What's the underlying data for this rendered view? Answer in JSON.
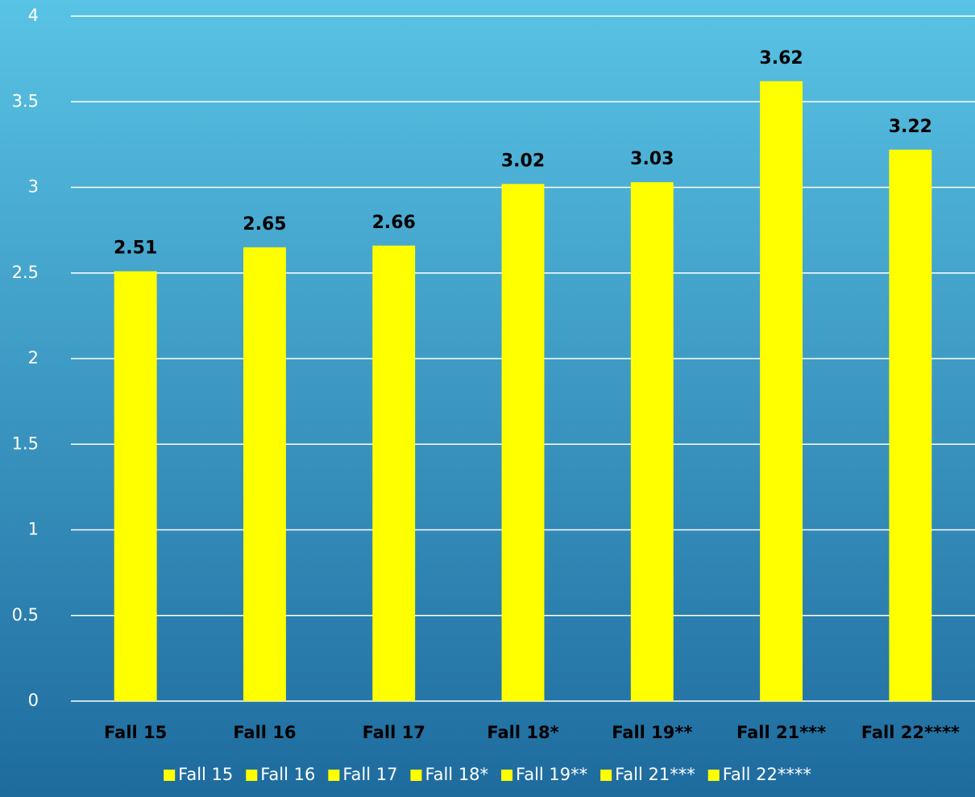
{
  "chart_data": {
    "type": "bar",
    "categories": [
      "Fall 15",
      "Fall 16",
      "Fall 17",
      "Fall 18*",
      "Fall 19**",
      "Fall 21***",
      "Fall 22****"
    ],
    "values": [
      2.51,
      2.65,
      2.66,
      3.02,
      3.03,
      3.62,
      3.22
    ],
    "color": "#ffff00",
    "ylim": [
      0,
      4
    ],
    "yticks": [
      0,
      0.5,
      1,
      1.5,
      2,
      2.5,
      3,
      3.5,
      4
    ],
    "grid": true,
    "legend": "bottom"
  }
}
